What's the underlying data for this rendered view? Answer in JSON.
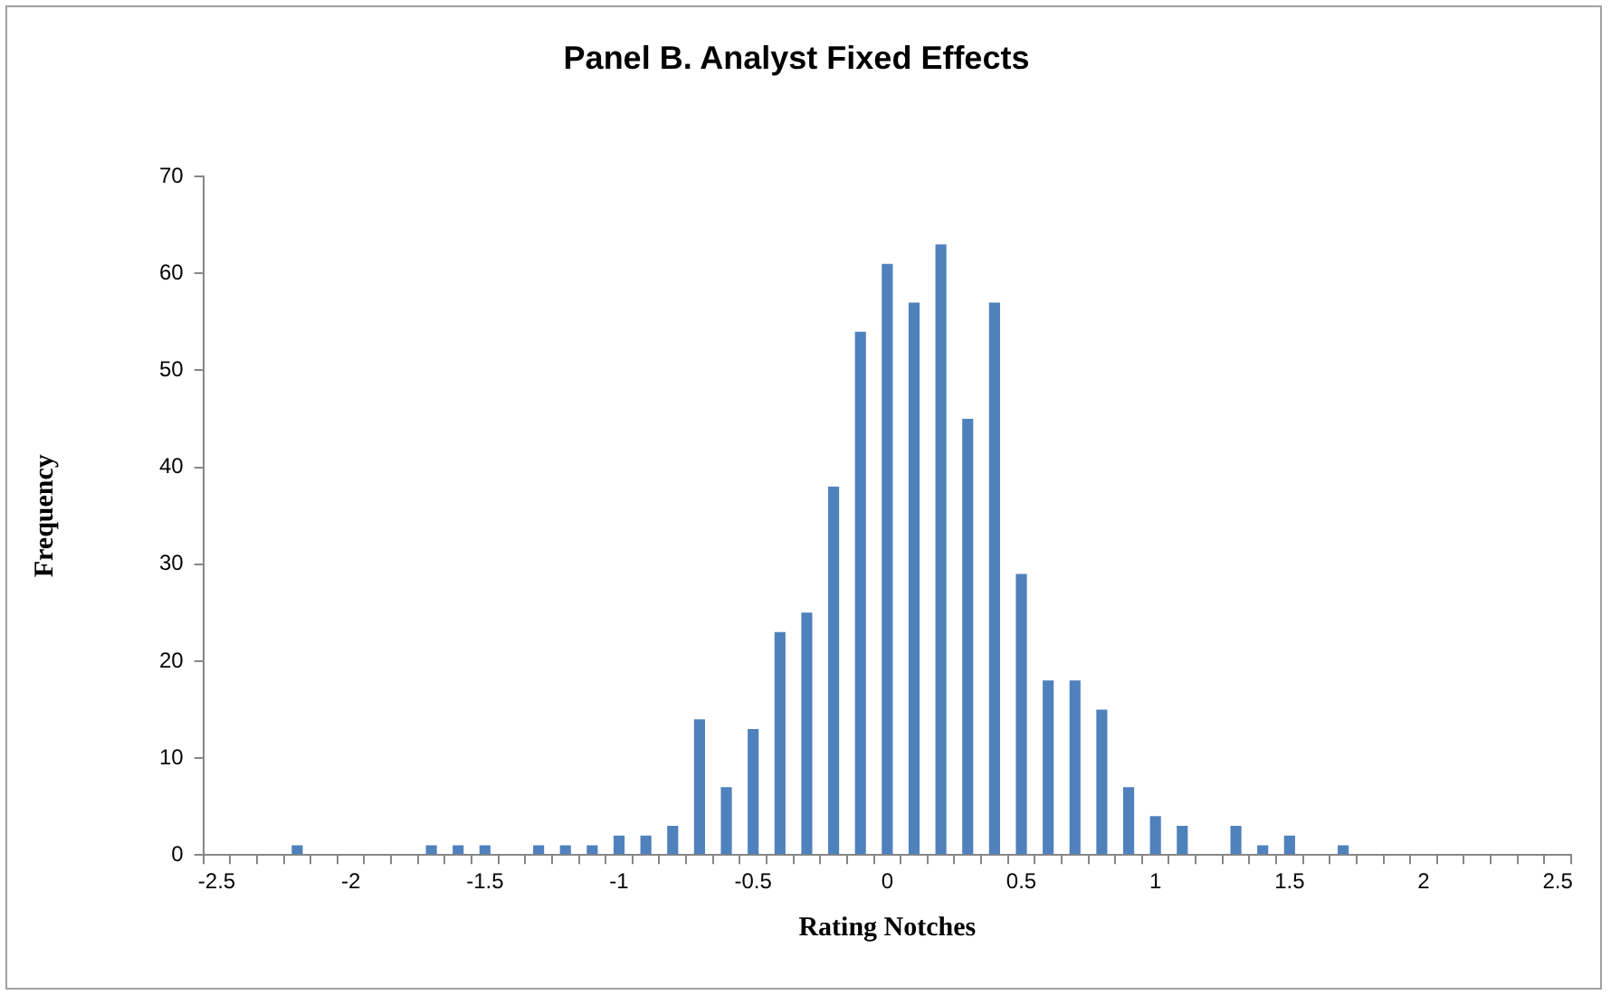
{
  "chart_data": {
    "type": "bar",
    "title": "Panel B. Analyst Fixed Effects",
    "xlabel": "Rating Notches",
    "ylabel": "Frequency",
    "categories": [
      "-2.5",
      null,
      null,
      null,
      null,
      "-2",
      null,
      null,
      null,
      null,
      "-1.5",
      null,
      null,
      null,
      null,
      "-1",
      null,
      null,
      null,
      null,
      "-0.5",
      null,
      null,
      null,
      null,
      "0",
      null,
      null,
      null,
      null,
      "0.5",
      null,
      null,
      null,
      null,
      "1",
      null,
      null,
      null,
      null,
      "1.5",
      null,
      null,
      null,
      null,
      "2",
      null,
      null,
      null,
      null,
      "2.5"
    ],
    "values": [
      0,
      0,
      0,
      1,
      0,
      0,
      0,
      0,
      1,
      1,
      1,
      0,
      1,
      1,
      1,
      2,
      2,
      3,
      14,
      7,
      13,
      23,
      25,
      38,
      54,
      61,
      57,
      63,
      45,
      57,
      29,
      18,
      18,
      15,
      7,
      4,
      3,
      0,
      3,
      1,
      2,
      0,
      1,
      0,
      0,
      0,
      0,
      0,
      0,
      0,
      0
    ],
    "color": "#4f81bd",
    "ylim": [
      0,
      70
    ],
    "yticks": [
      0,
      10,
      20,
      30,
      40,
      50,
      60,
      70
    ],
    "grid": false,
    "legend": false
  }
}
